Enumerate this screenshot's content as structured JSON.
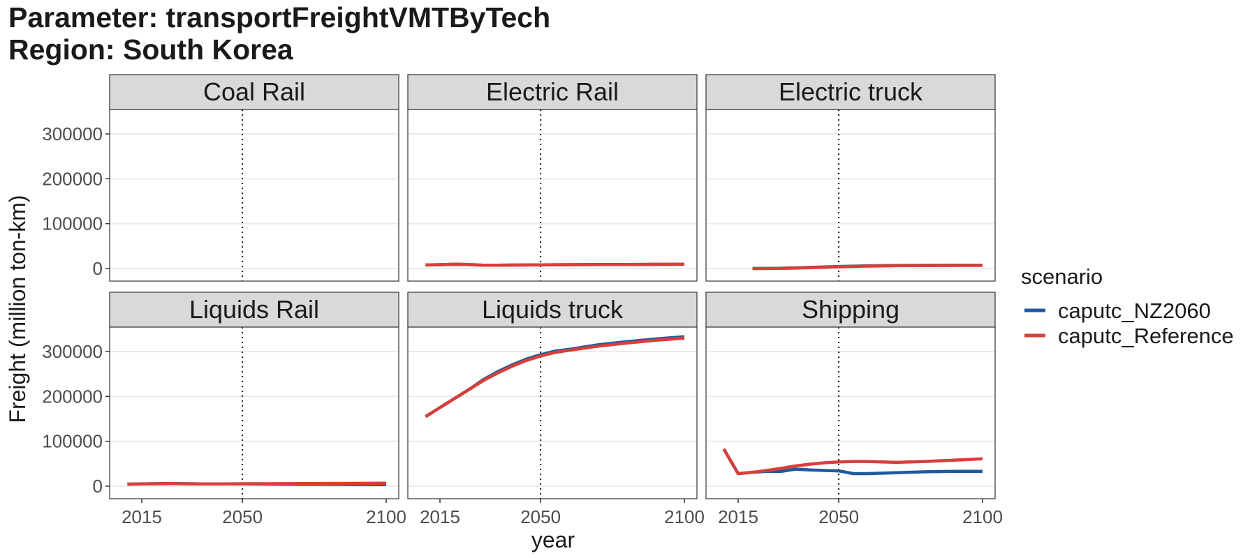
{
  "title_line1": "Parameter: transportFreightVMTByTech",
  "title_line2": "Region: South Korea",
  "chart_data": {
    "type": "line",
    "xlabel": "year",
    "ylabel": "Freight (million ton-km)",
    "xlim": [
      2010,
      2100
    ],
    "ylim": [
      -5000,
      345000
    ],
    "x_ticks": [
      2015,
      2050,
      2100
    ],
    "y_ticks": [
      0,
      100000,
      200000,
      300000
    ],
    "reference_line_x": 2050,
    "grid": true,
    "legend": {
      "title": "scenario",
      "placement": "right",
      "entries": [
        {
          "name": "caputc_NZ2060",
          "color": "#1f5aa0"
        },
        {
          "name": "caputc_Reference",
          "color": "#d73f3b"
        }
      ]
    },
    "panels": [
      {
        "name": "Coal Rail",
        "series": []
      },
      {
        "name": "Electric Rail",
        "series": [
          {
            "name": "caputc_NZ2060",
            "x": [
              2010,
              2015,
              2020,
              2025,
              2030,
              2035,
              2040,
              2045,
              2050,
              2060,
              2070,
              2080,
              2090,
              2100
            ],
            "y": [
              8000,
              8500,
              9500,
              9000,
              7500,
              7500,
              7800,
              8000,
              8200,
              8500,
              8800,
              9000,
              9300,
              9500
            ]
          },
          {
            "name": "caputc_Reference",
            "x": [
              2010,
              2015,
              2020,
              2025,
              2030,
              2035,
              2040,
              2045,
              2050,
              2060,
              2070,
              2080,
              2090,
              2100
            ],
            "y": [
              8000,
              8500,
              9500,
              9000,
              7500,
              7500,
              7800,
              8000,
              8200,
              8500,
              8800,
              9000,
              9300,
              9500
            ]
          }
        ]
      },
      {
        "name": "Electric truck",
        "series": [
          {
            "name": "caputc_NZ2060",
            "x": [
              2020,
              2025,
              2030,
              2035,
              2040,
              2045,
              2050,
              2060,
              2070,
              2080,
              2090,
              2100
            ],
            "y": [
              0,
              200,
              800,
              1500,
              2500,
              3500,
              4500,
              6000,
              6800,
              7200,
              7400,
              7500
            ]
          },
          {
            "name": "caputc_Reference",
            "x": [
              2020,
              2025,
              2030,
              2035,
              2040,
              2045,
              2050,
              2060,
              2070,
              2080,
              2090,
              2100
            ],
            "y": [
              0,
              100,
              500,
              1000,
              2000,
              3000,
              4000,
              5500,
              6300,
              6700,
              6900,
              7000
            ]
          }
        ]
      },
      {
        "name": "Liquids Rail",
        "series": [
          {
            "name": "caputc_NZ2060",
            "x": [
              2010,
              2015,
              2020,
              2025,
              2030,
              2035,
              2040,
              2045,
              2050,
              2060,
              2070,
              2080,
              2090,
              2100
            ],
            "y": [
              4500,
              5000,
              5500,
              5800,
              5500,
              5200,
              5000,
              5000,
              5000,
              4500,
              4000,
              4000,
              3800,
              3500
            ]
          },
          {
            "name": "caputc_Reference",
            "x": [
              2010,
              2015,
              2020,
              2025,
              2030,
              2035,
              2040,
              2045,
              2050,
              2060,
              2070,
              2080,
              2090,
              2100
            ],
            "y": [
              4500,
              5000,
              5500,
              5800,
              5500,
              5200,
              5000,
              5200,
              5500,
              5500,
              5800,
              6000,
              6200,
              6500
            ]
          }
        ]
      },
      {
        "name": "Liquids truck",
        "series": [
          {
            "name": "caputc_NZ2060",
            "x": [
              2010,
              2015,
              2020,
              2025,
              2030,
              2035,
              2040,
              2045,
              2050,
              2055,
              2060,
              2070,
              2080,
              2090,
              2100
            ],
            "y": [
              155000,
              175000,
              195000,
              215000,
              237000,
              255000,
              270000,
              283000,
              293000,
              301000,
              305000,
              315000,
              322000,
              328000,
              333000
            ]
          },
          {
            "name": "caputc_Reference",
            "x": [
              2010,
              2015,
              2020,
              2025,
              2030,
              2035,
              2040,
              2045,
              2050,
              2055,
              2060,
              2070,
              2080,
              2090,
              2100
            ],
            "y": [
              155000,
              175000,
              195000,
              215000,
              235000,
              252000,
              267000,
              280000,
              290000,
              298000,
              303000,
              312000,
              319000,
              325000,
              330000
            ]
          }
        ]
      },
      {
        "name": "Shipping",
        "series": [
          {
            "name": "caputc_NZ2060",
            "x": [
              2010,
              2015,
              2020,
              2025,
              2030,
              2035,
              2040,
              2045,
              2050,
              2055,
              2060,
              2070,
              2080,
              2090,
              2100
            ],
            "y": [
              83000,
              28000,
              31000,
              33000,
              33000,
              38000,
              36000,
              35000,
              34000,
              28000,
              28000,
              30000,
              32000,
              33000,
              33000
            ]
          },
          {
            "name": "caputc_Reference",
            "x": [
              2010,
              2015,
              2020,
              2025,
              2030,
              2035,
              2040,
              2045,
              2050,
              2055,
              2060,
              2070,
              2080,
              2090,
              2100
            ],
            "y": [
              83000,
              28000,
              31000,
              35000,
              40000,
              45000,
              49000,
              52000,
              54000,
              55000,
              55000,
              53000,
              55000,
              58000,
              61000
            ]
          }
        ]
      }
    ]
  }
}
